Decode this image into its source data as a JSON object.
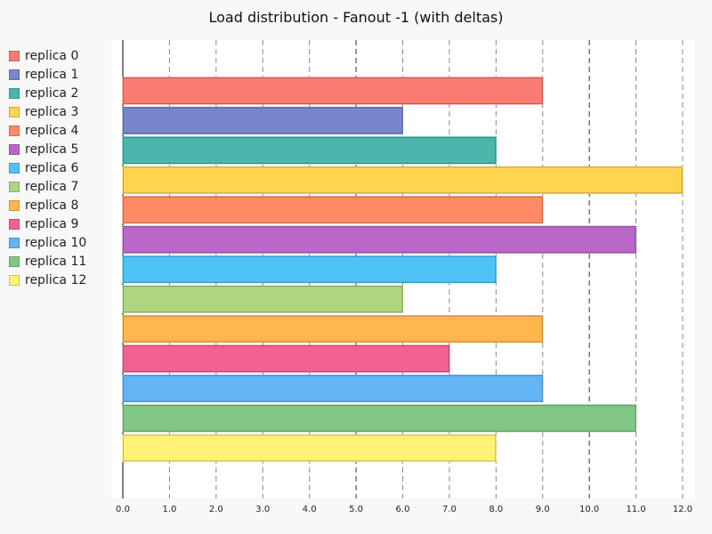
{
  "chart_data": {
    "type": "bar",
    "orientation": "horizontal",
    "title": "Load distribution - Fanout -1 (with deltas)",
    "xlabel": "",
    "ylabel": "",
    "xlim": [
      0,
      12.0
    ],
    "xticks": [
      "0.0",
      "1.0",
      "2.0",
      "3.0",
      "4.0",
      "5.0",
      "6.0",
      "7.0",
      "8.0",
      "9.0",
      "10.0",
      "11.0",
      "12.0"
    ],
    "grid": "vertical dashed",
    "legend_position": "left",
    "categories": [
      "replica 0",
      "replica 1",
      "replica 2",
      "replica 3",
      "replica 4",
      "replica 5",
      "replica 6",
      "replica 7",
      "replica 8",
      "replica 9",
      "replica 10",
      "replica 11",
      "replica 12"
    ],
    "values": [
      9,
      6,
      8,
      12,
      9,
      11,
      8,
      6,
      9,
      7,
      9,
      11,
      8
    ],
    "colors": [
      "#f87c72",
      "#7986cb",
      "#4db6ac",
      "#ffd54f",
      "#ff8a65",
      "#ba68c8",
      "#4fc3f7",
      "#aed581",
      "#ffb74d",
      "#f06292",
      "#64b5f6",
      "#81c784",
      "#fff176"
    ]
  }
}
